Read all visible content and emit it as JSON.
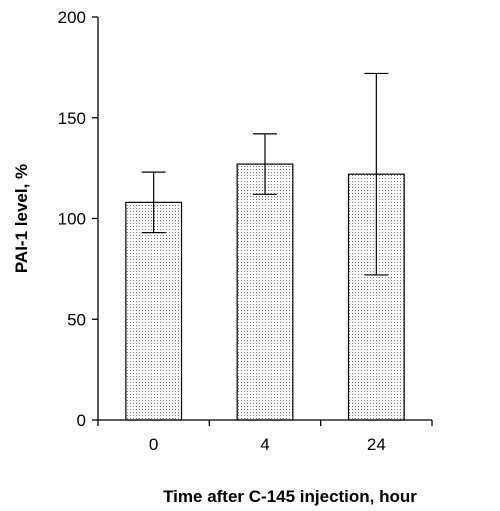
{
  "chart_data": {
    "type": "bar",
    "title": "",
    "xlabel": "Time after C-145 injection, hour",
    "ylabel": "PAI-1 level, %",
    "categories": [
      "0",
      "4",
      "24"
    ],
    "series": [
      {
        "values": [
          108,
          127,
          122
        ],
        "error": [
          15,
          15,
          50
        ]
      }
    ],
    "ylim": [
      0,
      200
    ],
    "yticks": [
      0,
      50,
      100,
      150,
      200
    ],
    "grid": false,
    "legend": "none",
    "bar_pattern": "dotted"
  }
}
